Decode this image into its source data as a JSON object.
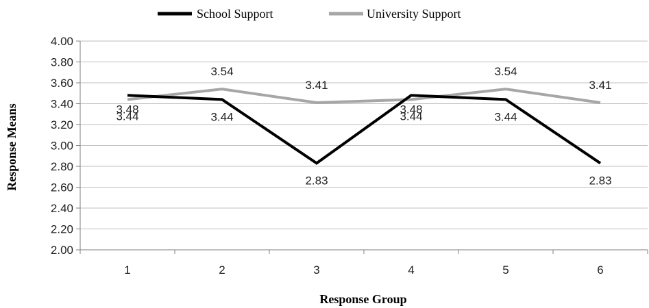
{
  "chart_data": {
    "type": "line",
    "categories": [
      "1",
      "2",
      "3",
      "4",
      "5",
      "6"
    ],
    "series": [
      {
        "name": "School Support",
        "color": "#000000",
        "values": [
          3.48,
          3.44,
          2.83,
          3.48,
          3.44,
          2.83
        ],
        "labels": [
          "3.48",
          "3.44",
          "2.83",
          "3.48",
          "3.44",
          "2.83"
        ]
      },
      {
        "name": "University Support",
        "color": "#a6a6a6",
        "values": [
          3.44,
          3.54,
          3.41,
          3.44,
          3.54,
          3.41
        ],
        "labels": [
          "3.44",
          "3.54",
          "3.41",
          "3.44",
          "3.54",
          "3.41"
        ]
      }
    ],
    "xlabel": "Response Group",
    "ylabel": "Response Means",
    "ylim": [
      2.0,
      4.0
    ],
    "yticks": [
      "2.00",
      "2.20",
      "2.40",
      "2.60",
      "2.80",
      "3.00",
      "3.20",
      "3.40",
      "3.60",
      "3.80",
      "4.00"
    ],
    "grid": true,
    "legend": "top-center"
  }
}
